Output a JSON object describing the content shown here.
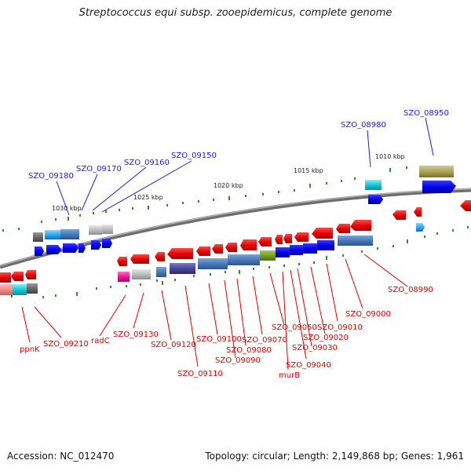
{
  "title": "Streptococcus equi subsp. zooepidemicus, complete genome",
  "footer": {
    "accession": "Accession: NC_012470",
    "topology": "Topology: circular; Length: 2,149,868 bp; Genes: 1,961"
  },
  "scale_labels": [
    "1030 kbp",
    "1025 kbp",
    "1020 kbp",
    "1015 kbp",
    "1010 kbp"
  ],
  "top_genes": [
    "SZO_09180",
    "SZO_09170",
    "SZO_09160",
    "SZO_09150",
    "SZO_08980",
    "SZO_08950"
  ],
  "bottom_genes": [
    "ppnK",
    "SZO_09210",
    "radC",
    "SZO_09130",
    "SZO_09120",
    "SZO_09110",
    "SZO_09100",
    "SZO_09090",
    "SZO_09080",
    "SZO_09070",
    "SZO_09050",
    "murB",
    "SZO_09040",
    "SZO_09030",
    "SZO_09020",
    "SZO_09010",
    "SZO_09000",
    "SZO_08990"
  ],
  "colors": {
    "forward_strand": "#0000ee",
    "reverse_strand": "#ee0000",
    "backbone": "#808080",
    "tick": "#2e8b2e",
    "label_top": "#1a1aff",
    "label_bottom": "#e00000"
  }
}
